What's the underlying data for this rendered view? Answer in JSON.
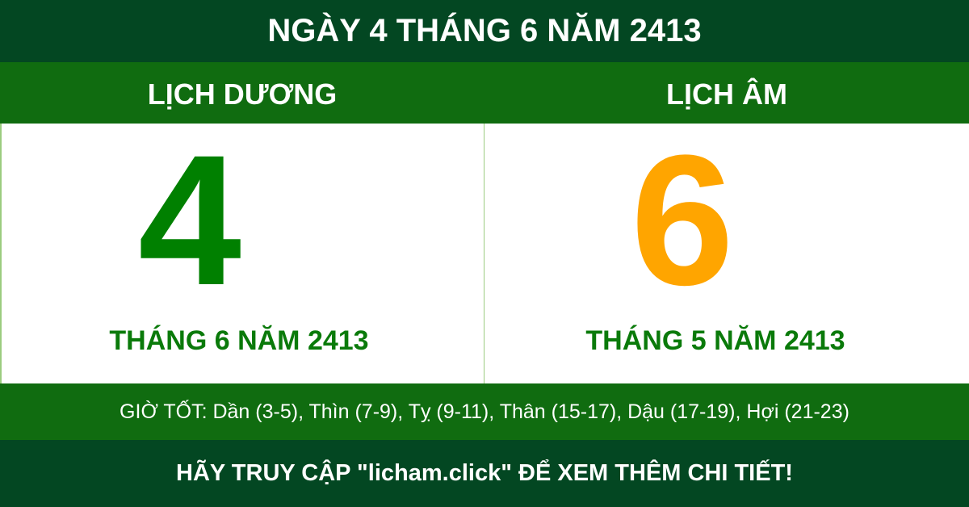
{
  "title": "NGÀY 4 THÁNG 6 NĂM 2413",
  "solar": {
    "label": "LỊCH DƯƠNG",
    "day": "4",
    "month_year": "THÁNG 6 NĂM 2413"
  },
  "lunar": {
    "label": "LỊCH ÂM",
    "day": "6",
    "month_year": "THÁNG 5 NĂM 2413"
  },
  "good_hours": "GIỜ TỐT: Dần (3-5), Thìn (7-9), Tỵ (9-11), Thân (15-17), Dậu (17-19), Hợi (21-23)",
  "footer": "HÃY TRUY CẬP \"licham.click\" ĐỂ XEM THÊM CHI TIẾT!",
  "colors": {
    "dark_green": "#034722",
    "green": "#106c10",
    "solar_digit": "#008000",
    "lunar_digit": "#ffa500"
  }
}
